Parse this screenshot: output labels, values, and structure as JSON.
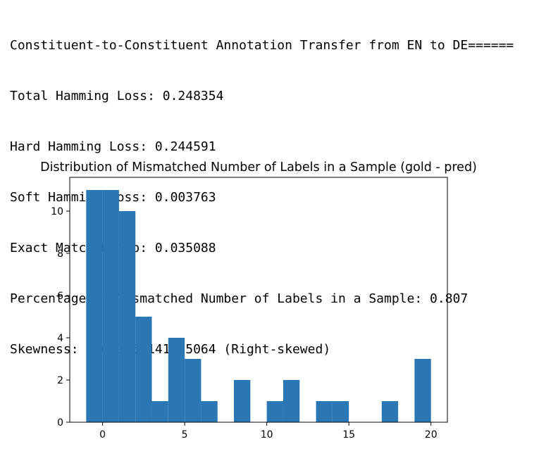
{
  "output_lines": [
    "Constituent-to-Constituent Annotation Transfer from EN to DE======",
    "Total Hamming Loss: 0.248354",
    "Hard Hamming Loss: 0.244591",
    "Soft Hamming Loss: 0.003763",
    "Exact Match Ratio: 0.035088",
    "Percentage of Mismatched Number of Labels in a Sample: 0.807",
    "Skewness: 1.651057141775064 (Right-skewed)"
  ],
  "chart_data": {
    "type": "bar",
    "title": "Distribution of Mismatched Number of Labels in a Sample (gold - pred)",
    "xlabel": "",
    "ylabel": "",
    "bar_color": "#2a77b4",
    "xlim": [
      -2,
      21
    ],
    "ylim": [
      0,
      11.6
    ],
    "grid": false,
    "x_ticks": [
      0,
      5,
      10,
      15,
      20
    ],
    "y_ticks": [
      0,
      2,
      4,
      6,
      8,
      10
    ],
    "bins": [
      {
        "x0": -1,
        "x1": 0,
        "count": 11
      },
      {
        "x0": 0,
        "x1": 1,
        "count": 11
      },
      {
        "x0": 1,
        "x1": 2,
        "count": 10
      },
      {
        "x0": 2,
        "x1": 3,
        "count": 5
      },
      {
        "x0": 3,
        "x1": 4,
        "count": 1
      },
      {
        "x0": 4,
        "x1": 5,
        "count": 4
      },
      {
        "x0": 5,
        "x1": 6,
        "count": 3
      },
      {
        "x0": 6,
        "x1": 7,
        "count": 1
      },
      {
        "x0": 7,
        "x1": 8,
        "count": 0
      },
      {
        "x0": 8,
        "x1": 9,
        "count": 2
      },
      {
        "x0": 9,
        "x1": 10,
        "count": 0
      },
      {
        "x0": 10,
        "x1": 11,
        "count": 1
      },
      {
        "x0": 11,
        "x1": 12,
        "count": 2
      },
      {
        "x0": 12,
        "x1": 13,
        "count": 0
      },
      {
        "x0": 13,
        "x1": 14,
        "count": 1
      },
      {
        "x0": 14,
        "x1": 15,
        "count": 1
      },
      {
        "x0": 15,
        "x1": 16,
        "count": 0
      },
      {
        "x0": 16,
        "x1": 17,
        "count": 0
      },
      {
        "x0": 17,
        "x1": 18,
        "count": 1
      },
      {
        "x0": 18,
        "x1": 19,
        "count": 0
      },
      {
        "x0": 19,
        "x1": 20,
        "count": 3
      }
    ]
  }
}
